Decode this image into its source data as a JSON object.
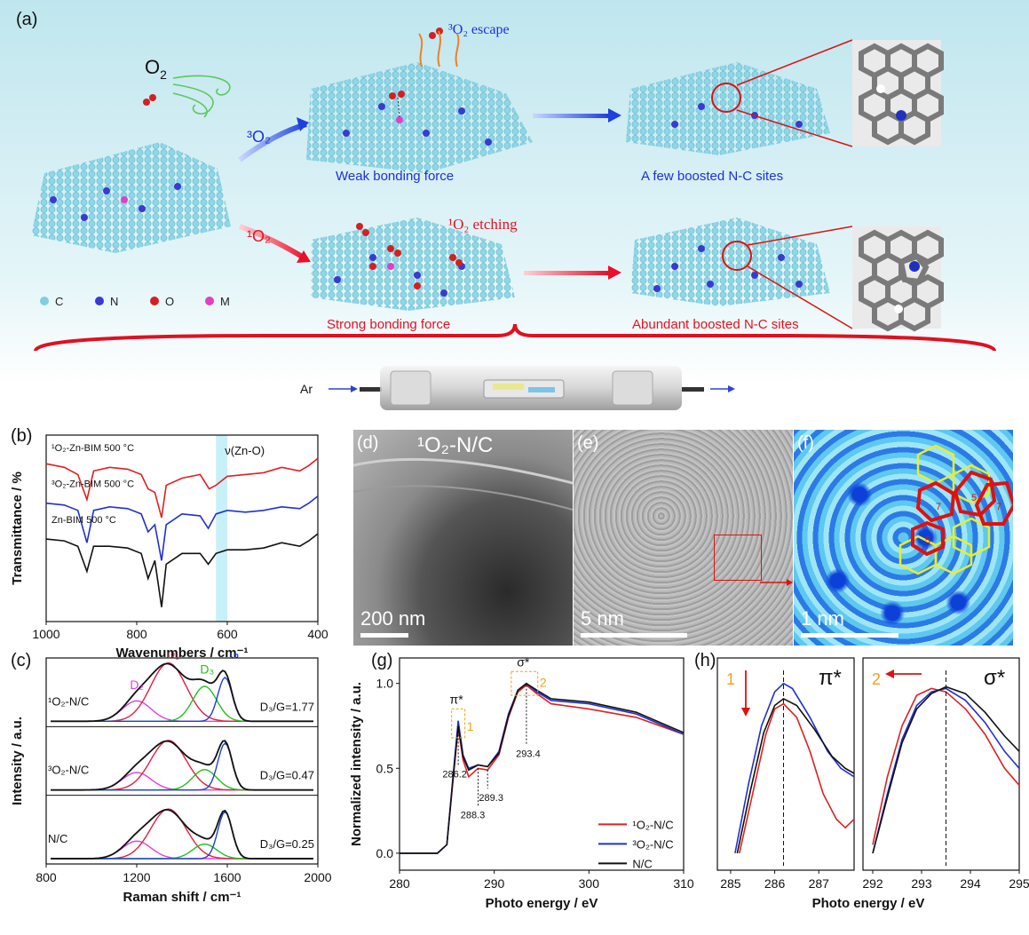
{
  "panel_labels": {
    "a": "(a)",
    "b": "(b)",
    "c": "(c)",
    "d": "(d)",
    "e": "(e)",
    "f": "(f)",
    "g": "(g)",
    "h": "(h)"
  },
  "panel_a": {
    "o2": "O",
    "o2_sub": "2",
    "triplet_path": "³O₂",
    "singlet_path": "¹O₂",
    "escape": "³O₂ escape",
    "etching": "¹O₂ etching",
    "weak": "Weak bonding force",
    "strong": "Strong bonding force",
    "few_sites": "A few boosted N-C sites",
    "abundant_sites": "Abundant boosted N-C sites",
    "legend": [
      {
        "label": "C",
        "color": "#7ecfe3"
      },
      {
        "label": "N",
        "color": "#3a3ad0"
      },
      {
        "label": "O",
        "color": "#d42020"
      },
      {
        "label": "M",
        "color": "#e040c8"
      }
    ],
    "gas": "Ar"
  },
  "panel_b": {
    "ylabel": "Transmittance / %",
    "xlabel": "Wavenumbers / cm⁻¹",
    "xticks": [
      "1000",
      "800",
      "600",
      "400"
    ],
    "annotation": "ν(Zn-O)",
    "chart_data": {
      "type": "line",
      "xlim": [
        1000,
        400
      ],
      "highlight_band": [
        625,
        600
      ],
      "series": [
        {
          "name": "¹O₂-Zn-BIM 500 °C",
          "color": "#e02020",
          "offset": 2.0,
          "points": [
            [
              1000,
              0.4
            ],
            [
              960,
              0.3
            ],
            [
              930,
              0.1
            ],
            [
              910,
              -0.6
            ],
            [
              895,
              0.2
            ],
            [
              860,
              0.3
            ],
            [
              820,
              0.25
            ],
            [
              790,
              0.1
            ],
            [
              775,
              -0.3
            ],
            [
              760,
              -0.4
            ],
            [
              745,
              -1.1
            ],
            [
              735,
              -0.2
            ],
            [
              700,
              0.0
            ],
            [
              660,
              0.1
            ],
            [
              640,
              -0.3
            ],
            [
              625,
              -0.2
            ],
            [
              600,
              0.05
            ],
            [
              560,
              0.1
            ],
            [
              520,
              0.15
            ],
            [
              480,
              0.3
            ],
            [
              440,
              0.2
            ],
            [
              420,
              0.35
            ],
            [
              400,
              0.55
            ]
          ]
        },
        {
          "name": "³O₂-Zn-BIM 500 °C",
          "color": "#2030d0",
          "offset": 1.0,
          "points": [
            [
              1000,
              0.3
            ],
            [
              960,
              0.25
            ],
            [
              930,
              0.1
            ],
            [
              910,
              -0.8
            ],
            [
              895,
              0.1
            ],
            [
              860,
              0.2
            ],
            [
              820,
              0.15
            ],
            [
              790,
              0.0
            ],
            [
              775,
              -0.5
            ],
            [
              760,
              -0.3
            ],
            [
              745,
              -1.3
            ],
            [
              735,
              -0.3
            ],
            [
              700,
              0.0
            ],
            [
              660,
              -0.05
            ],
            [
              642,
              -0.4
            ],
            [
              625,
              0.0
            ],
            [
              600,
              0.1
            ],
            [
              560,
              0.05
            ],
            [
              520,
              0.1
            ],
            [
              480,
              0.2
            ],
            [
              440,
              0.15
            ],
            [
              420,
              0.3
            ],
            [
              400,
              0.5
            ]
          ]
        },
        {
          "name": "Zn-BIM 500 °C",
          "color": "#111111",
          "offset": 0.0,
          "points": [
            [
              1000,
              0.3
            ],
            [
              960,
              0.25
            ],
            [
              930,
              0.1
            ],
            [
              910,
              -0.6
            ],
            [
              895,
              0.1
            ],
            [
              860,
              0.1
            ],
            [
              820,
              0.05
            ],
            [
              790,
              -0.1
            ],
            [
              775,
              -0.8
            ],
            [
              760,
              -0.3
            ],
            [
              745,
              -1.6
            ],
            [
              735,
              -0.4
            ],
            [
              700,
              -0.1
            ],
            [
              660,
              -0.1
            ],
            [
              642,
              -0.4
            ],
            [
              625,
              -0.1
            ],
            [
              600,
              0.0
            ],
            [
              560,
              0.0
            ],
            [
              520,
              0.05
            ],
            [
              480,
              0.2
            ],
            [
              440,
              0.1
            ],
            [
              420,
              0.25
            ],
            [
              400,
              0.45
            ]
          ]
        }
      ]
    }
  },
  "panel_c": {
    "ylabel": "Intensity / a.u.",
    "xlabel": "Raman shift / cm⁻¹",
    "xticks": [
      "800",
      "1200",
      "1600",
      "2000"
    ],
    "rows": [
      {
        "name": "¹O₂-N/C",
        "ratio": "D₃/G=1.77",
        "D1": 1.0,
        "D2": 0.35,
        "D3": 0.6,
        "G": 0.75
      },
      {
        "name": "³O₂-N/C",
        "ratio": "D₃/G=0.47",
        "D1": 0.85,
        "D2": 0.3,
        "D3": 0.35,
        "G": 0.8
      },
      {
        "name": "N/C",
        "ratio": "D₃/G=0.25",
        "D1": 0.85,
        "D2": 0.3,
        "D3": 0.25,
        "G": 0.8
      }
    ],
    "peak_labels": {
      "D1": "D₁",
      "D2": "D₂",
      "D3": "D₃",
      "G": "G"
    },
    "colors": {
      "D1": "#e02040",
      "D2": "#e040e0",
      "D3": "#20c020",
      "G": "#2040d0",
      "fit": "#111111"
    }
  },
  "panel_d": {
    "title": "¹O₂-N/C",
    "scale": "200 nm"
  },
  "panel_e": {
    "scale": "5 nm"
  },
  "panel_f": {
    "scale": "1 nm",
    "rings": [
      "5",
      "7",
      "5",
      "7"
    ]
  },
  "panel_g": {
    "ylabel": "Normalized intensity / a.u.",
    "xlabel": "Photo energy / eV",
    "xticks": [
      "280",
      "290",
      "300",
      "310"
    ],
    "yticks": [
      "0.0",
      "0.5",
      "1.0"
    ],
    "pi_label": "π*",
    "sigma_label": "σ*",
    "box1": "1",
    "box2": "2",
    "peaks": [
      "286.2",
      "288.3",
      "289.3",
      "293.4"
    ],
    "chart_data": {
      "type": "line",
      "xlim": [
        280,
        310
      ],
      "ylim": [
        -0.1,
        1.15
      ],
      "series": [
        {
          "name": "¹O₂-N/C",
          "color": "#e02020",
          "points": [
            [
              280,
              0
            ],
            [
              284,
              0
            ],
            [
              285,
              0.05
            ],
            [
              285.6,
              0.4
            ],
            [
              286.2,
              0.74
            ],
            [
              286.7,
              0.55
            ],
            [
              287.3,
              0.45
            ],
            [
              288.3,
              0.5
            ],
            [
              289.3,
              0.49
            ],
            [
              290.5,
              0.58
            ],
            [
              291.5,
              0.8
            ],
            [
              292.5,
              0.95
            ],
            [
              293.4,
              0.99
            ],
            [
              294.5,
              0.94
            ],
            [
              296,
              0.88
            ],
            [
              300,
              0.85
            ],
            [
              305,
              0.8
            ],
            [
              310,
              0.7
            ]
          ]
        },
        {
          "name": "³O₂-N/C",
          "color": "#2030d0",
          "points": [
            [
              280,
              0
            ],
            [
              284,
              0
            ],
            [
              285,
              0.05
            ],
            [
              285.6,
              0.42
            ],
            [
              286.2,
              0.78
            ],
            [
              286.7,
              0.58
            ],
            [
              287.3,
              0.5
            ],
            [
              288.3,
              0.52
            ],
            [
              289.3,
              0.51
            ],
            [
              290.5,
              0.6
            ],
            [
              291.5,
              0.82
            ],
            [
              292.5,
              0.96
            ],
            [
              293.4,
              1.0
            ],
            [
              294.5,
              0.95
            ],
            [
              296,
              0.9
            ],
            [
              300,
              0.88
            ],
            [
              305,
              0.82
            ],
            [
              310,
              0.7
            ]
          ]
        },
        {
          "name": "N/C",
          "color": "#111111",
          "points": [
            [
              280,
              0
            ],
            [
              284,
              0
            ],
            [
              285,
              0.05
            ],
            [
              285.6,
              0.41
            ],
            [
              286.2,
              0.75
            ],
            [
              286.7,
              0.57
            ],
            [
              287.3,
              0.49
            ],
            [
              288.3,
              0.52
            ],
            [
              289.3,
              0.51
            ],
            [
              290.5,
              0.59
            ],
            [
              291.5,
              0.81
            ],
            [
              292.5,
              0.96
            ],
            [
              293.4,
              1.0
            ],
            [
              294.5,
              0.96
            ],
            [
              296,
              0.91
            ],
            [
              300,
              0.89
            ],
            [
              305,
              0.83
            ],
            [
              310,
              0.71
            ]
          ]
        }
      ]
    }
  },
  "panel_h": {
    "xlabel": "Photo energy / eV",
    "left": {
      "label": "π*",
      "box": "1",
      "xticks": [
        "285",
        "286",
        "287"
      ],
      "xlim": [
        284.7,
        287.8
      ],
      "marker": 286.2,
      "series": [
        {
          "color": "#e02020",
          "points": [
            [
              285.2,
              0.05
            ],
            [
              285.5,
              0.4
            ],
            [
              285.8,
              0.75
            ],
            [
              286.0,
              0.9
            ],
            [
              286.2,
              0.93
            ],
            [
              286.5,
              0.85
            ],
            [
              286.8,
              0.65
            ],
            [
              287.1,
              0.4
            ],
            [
              287.4,
              0.25
            ],
            [
              287.6,
              0.2
            ],
            [
              287.8,
              0.25
            ]
          ]
        },
        {
          "color": "#2030d0",
          "points": [
            [
              285.1,
              0.05
            ],
            [
              285.4,
              0.45
            ],
            [
              285.7,
              0.8
            ],
            [
              286.0,
              1.0
            ],
            [
              286.2,
              1.05
            ],
            [
              286.4,
              1.02
            ],
            [
              286.8,
              0.85
            ],
            [
              287.2,
              0.65
            ],
            [
              287.5,
              0.55
            ],
            [
              287.8,
              0.5
            ]
          ]
        },
        {
          "color": "#111111",
          "points": [
            [
              285.15,
              0.05
            ],
            [
              285.45,
              0.42
            ],
            [
              285.75,
              0.76
            ],
            [
              286.0,
              0.92
            ],
            [
              286.2,
              0.96
            ],
            [
              286.5,
              0.92
            ],
            [
              286.9,
              0.78
            ],
            [
              287.3,
              0.62
            ],
            [
              287.6,
              0.55
            ],
            [
              287.8,
              0.52
            ]
          ]
        }
      ]
    },
    "right": {
      "label": "σ*",
      "box": "2",
      "xticks": [
        "292",
        "293",
        "294",
        "295"
      ],
      "xlim": [
        291.8,
        295
      ],
      "marker": 293.5,
      "series": [
        {
          "color": "#e02020",
          "points": [
            [
              292.0,
              0.1
            ],
            [
              292.3,
              0.5
            ],
            [
              292.6,
              0.8
            ],
            [
              292.9,
              0.98
            ],
            [
              293.2,
              1.02
            ],
            [
              293.5,
              1.0
            ],
            [
              293.9,
              0.9
            ],
            [
              294.3,
              0.75
            ],
            [
              294.7,
              0.55
            ],
            [
              295,
              0.45
            ]
          ]
        },
        {
          "color": "#2030d0",
          "points": [
            [
              292.0,
              0.05
            ],
            [
              292.3,
              0.4
            ],
            [
              292.6,
              0.72
            ],
            [
              292.9,
              0.92
            ],
            [
              293.2,
              1.0
            ],
            [
              293.5,
              1.02
            ],
            [
              293.9,
              0.95
            ],
            [
              294.3,
              0.82
            ],
            [
              294.7,
              0.65
            ],
            [
              295,
              0.55
            ]
          ]
        },
        {
          "color": "#111111",
          "points": [
            [
              292.0,
              0.05
            ],
            [
              292.3,
              0.38
            ],
            [
              292.6,
              0.7
            ],
            [
              292.9,
              0.9
            ],
            [
              293.2,
              0.99
            ],
            [
              293.5,
              1.03
            ],
            [
              293.9,
              0.99
            ],
            [
              294.3,
              0.88
            ],
            [
              294.7,
              0.74
            ],
            [
              295,
              0.65
            ]
          ]
        }
      ]
    }
  }
}
